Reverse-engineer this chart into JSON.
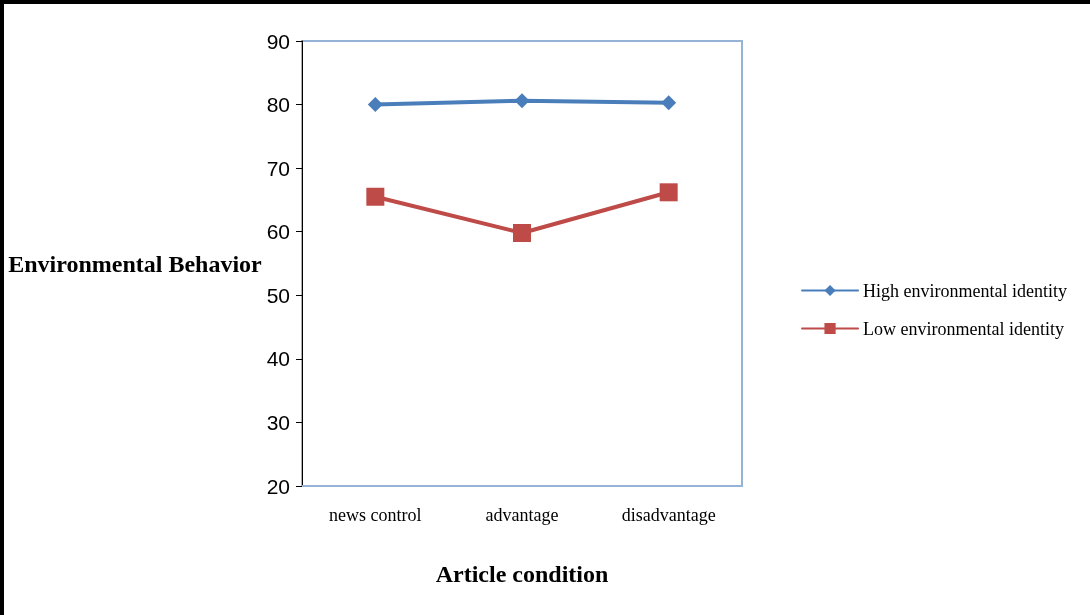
{
  "chart_data": {
    "type": "line",
    "xlabel": "Article condition",
    "ylabel": "Environmental Behavior",
    "categories": [
      "news control",
      "advantage",
      "disadvantage"
    ],
    "series": [
      {
        "name": "High environmental identity",
        "color": "#4a7ebb",
        "values": [
          80,
          80.6,
          80.3
        ],
        "marker": "diamond"
      },
      {
        "name": "Low environmental identity",
        "color": "#be4b48",
        "values": [
          65.5,
          59.8,
          66.2
        ],
        "marker": "square"
      }
    ],
    "ylim": [
      20,
      90
    ],
    "yticks": [
      20,
      30,
      40,
      50,
      60,
      70,
      80,
      90
    ],
    "grid": false,
    "legend": "right",
    "line_style": "solid"
  }
}
